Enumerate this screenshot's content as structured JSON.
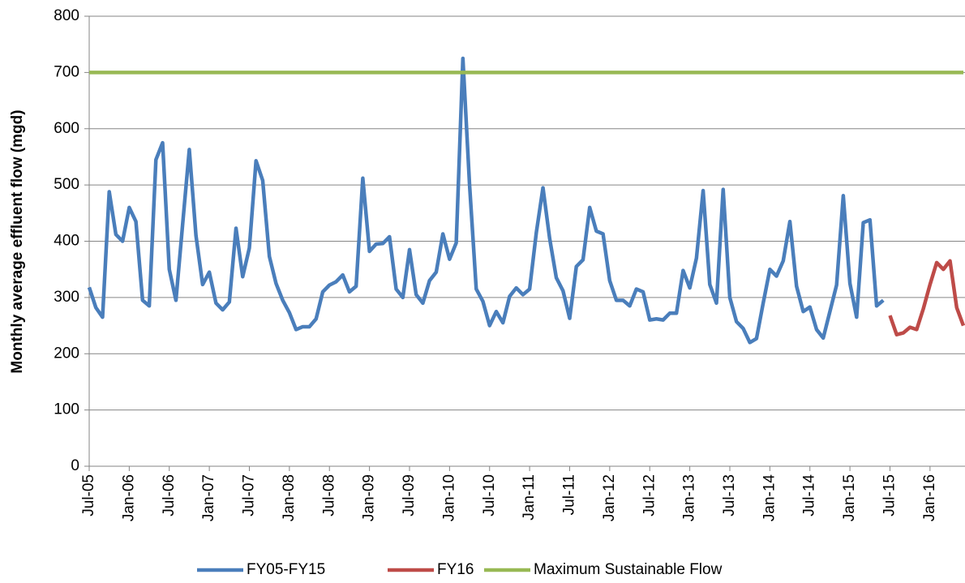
{
  "chart_data": {
    "type": "line",
    "y_label": "Monthly average effluent flow (mgd)",
    "categories": [
      "Jul-05",
      null,
      null,
      null,
      null,
      null,
      "Jan-06",
      null,
      null,
      null,
      null,
      null,
      "Jul-06",
      null,
      null,
      null,
      null,
      null,
      "Jan-07",
      null,
      null,
      null,
      null,
      null,
      "Jul-07",
      null,
      null,
      null,
      null,
      null,
      "Jan-08",
      null,
      null,
      null,
      null,
      null,
      "Jul-08",
      null,
      null,
      null,
      null,
      null,
      "Jan-09",
      null,
      null,
      null,
      null,
      null,
      "Jul-09",
      null,
      null,
      null,
      null,
      null,
      "Jan-10",
      null,
      null,
      null,
      null,
      null,
      "Jul-10",
      null,
      null,
      null,
      null,
      null,
      "Jan-11",
      null,
      null,
      null,
      null,
      null,
      "Jul-11",
      null,
      null,
      null,
      null,
      null,
      "Jan-12",
      null,
      null,
      null,
      null,
      null,
      "Jul-12",
      null,
      null,
      null,
      null,
      null,
      "Jan-13",
      null,
      null,
      null,
      null,
      null,
      "Jul-13",
      null,
      null,
      null,
      null,
      null,
      "Jan-14",
      null,
      null,
      null,
      null,
      null,
      "Jul-14",
      null,
      null,
      null,
      null,
      null,
      "Jan-15",
      null,
      null,
      null,
      null,
      null,
      "Jul-15",
      null,
      null,
      null,
      null,
      null,
      "Jan-16",
      null,
      null,
      null,
      null,
      null
    ],
    "series": [
      {
        "name": "FY05-FY15",
        "color": "#4a7ebb",
        "values": [
          318,
          282,
          265,
          488,
          412,
          400,
          460,
          435,
          295,
          285,
          545,
          575,
          350,
          295,
          430,
          563,
          410,
          323,
          345,
          290,
          278,
          292,
          423,
          337,
          388,
          543,
          508,
          373,
          325,
          295,
          273,
          243,
          248,
          248,
          262,
          310,
          322,
          328,
          340,
          310,
          320,
          512,
          382,
          395,
          396,
          408,
          315,
          300,
          385,
          305,
          290,
          330,
          345,
          413,
          368,
          397,
          725,
          500,
          315,
          293,
          250,
          275,
          255,
          302,
          317,
          305,
          315,
          415,
          495,
          405,
          335,
          312,
          263,
          355,
          367,
          460,
          418,
          413,
          330,
          295,
          295,
          285,
          315,
          310,
          260,
          262,
          260,
          272,
          272,
          348,
          317,
          370,
          490,
          323,
          290,
          492,
          300,
          257,
          245,
          220,
          227,
          290,
          350,
          338,
          365,
          435,
          320,
          275,
          283,
          243,
          228,
          275,
          322,
          481,
          325,
          265,
          433,
          438,
          285,
          295,
          null,
          null,
          null,
          null,
          null,
          null,
          null,
          null,
          null,
          null,
          null,
          null
        ]
      },
      {
        "name": "FY16",
        "color": "#be4b48",
        "values": [
          null,
          null,
          null,
          null,
          null,
          null,
          null,
          null,
          null,
          null,
          null,
          null,
          null,
          null,
          null,
          null,
          null,
          null,
          null,
          null,
          null,
          null,
          null,
          null,
          null,
          null,
          null,
          null,
          null,
          null,
          null,
          null,
          null,
          null,
          null,
          null,
          null,
          null,
          null,
          null,
          null,
          null,
          null,
          null,
          null,
          null,
          null,
          null,
          null,
          null,
          null,
          null,
          null,
          null,
          null,
          null,
          null,
          null,
          null,
          null,
          null,
          null,
          null,
          null,
          null,
          null,
          null,
          null,
          null,
          null,
          null,
          null,
          null,
          null,
          null,
          null,
          null,
          null,
          null,
          null,
          null,
          null,
          null,
          null,
          null,
          null,
          null,
          null,
          null,
          null,
          null,
          null,
          null,
          null,
          null,
          null,
          null,
          null,
          null,
          null,
          null,
          null,
          null,
          null,
          null,
          null,
          null,
          null,
          null,
          null,
          null,
          null,
          null,
          null,
          null,
          null,
          null,
          null,
          null,
          null,
          268,
          234,
          237,
          247,
          243,
          280,
          323,
          362,
          350,
          365,
          282,
          250
        ]
      },
      {
        "name": "Maximum Sustainable Flow",
        "color": "#98b954",
        "values": [
          700,
          700,
          700,
          700,
          700,
          700,
          700,
          700,
          700,
          700,
          700,
          700,
          700,
          700,
          700,
          700,
          700,
          700,
          700,
          700,
          700,
          700,
          700,
          700,
          700,
          700,
          700,
          700,
          700,
          700,
          700,
          700,
          700,
          700,
          700,
          700,
          700,
          700,
          700,
          700,
          700,
          700,
          700,
          700,
          700,
          700,
          700,
          700,
          700,
          700,
          700,
          700,
          700,
          700,
          700,
          700,
          700,
          700,
          700,
          700,
          700,
          700,
          700,
          700,
          700,
          700,
          700,
          700,
          700,
          700,
          700,
          700,
          700,
          700,
          700,
          700,
          700,
          700,
          700,
          700,
          700,
          700,
          700,
          700,
          700,
          700,
          700,
          700,
          700,
          700,
          700,
          700,
          700,
          700,
          700,
          700,
          700,
          700,
          700,
          700,
          700,
          700,
          700,
          700,
          700,
          700,
          700,
          700,
          700,
          700,
          700,
          700,
          700,
          700,
          700,
          700,
          700,
          700,
          700,
          700,
          700,
          700,
          700,
          700,
          700,
          700,
          700,
          700,
          700,
          700,
          700,
          700
        ]
      }
    ],
    "ylim": [
      0,
      800
    ],
    "yticks": [
      0,
      100,
      200,
      300,
      400,
      500,
      600,
      700,
      800
    ],
    "grid": true,
    "legend": "bottom"
  }
}
